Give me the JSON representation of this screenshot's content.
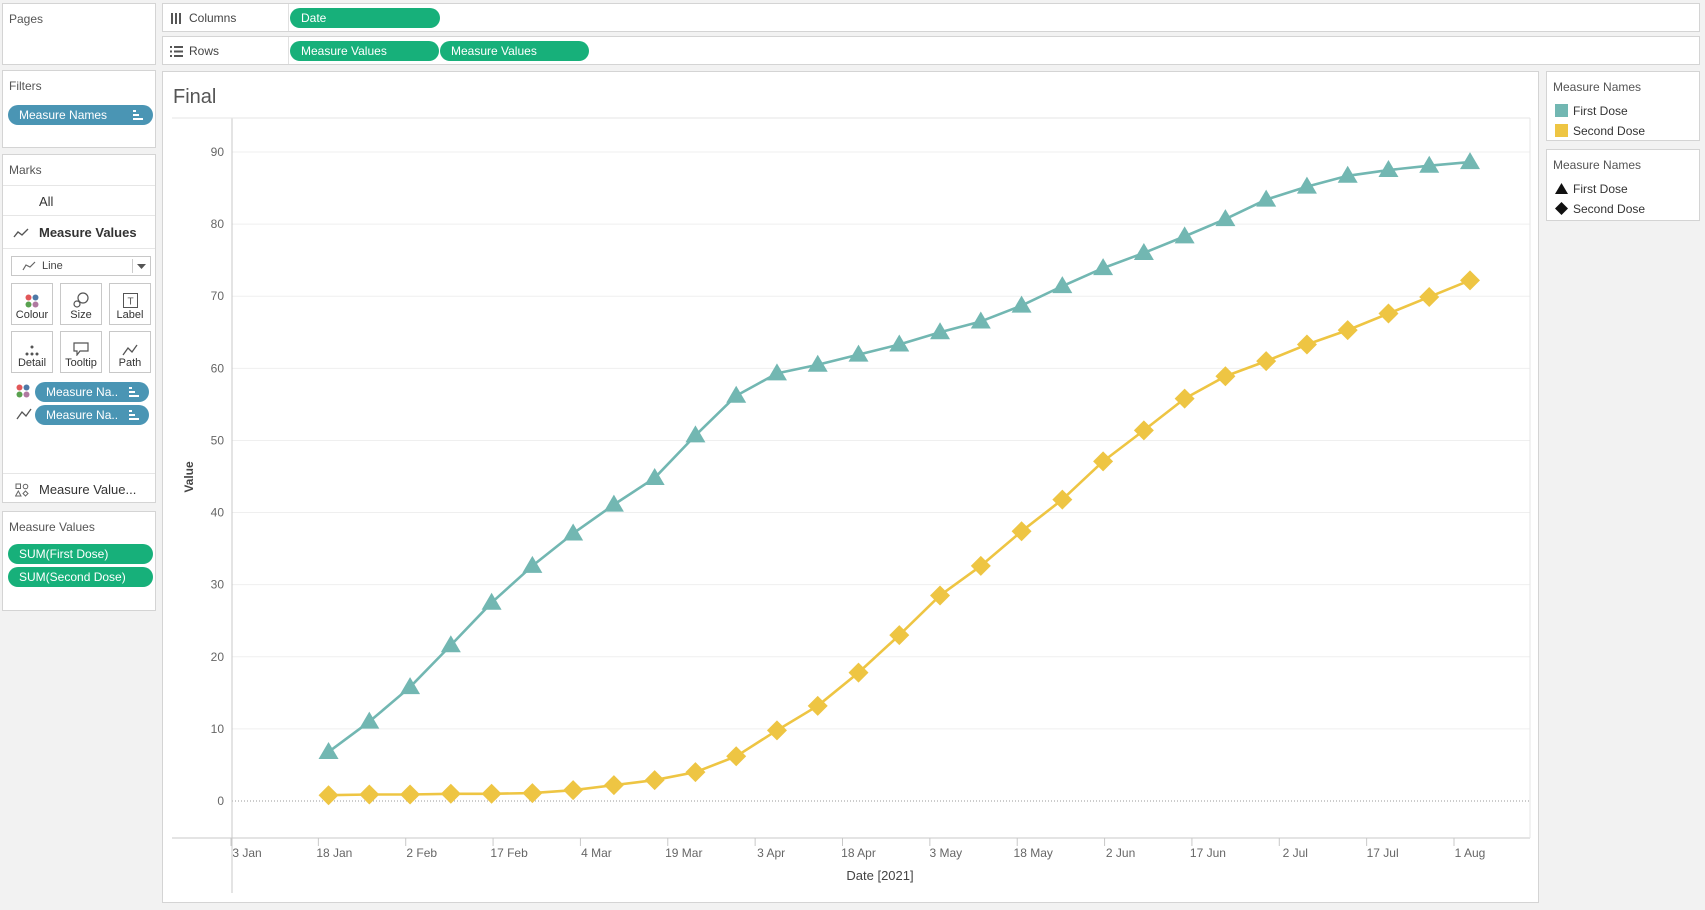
{
  "pages_panel": {
    "title": "Pages"
  },
  "columns_shelf": {
    "label": "Columns",
    "pills": [
      "Date"
    ]
  },
  "rows_shelf": {
    "label": "Rows",
    "pills": [
      "Measure Values",
      "Measure Values"
    ]
  },
  "filters_panel": {
    "title": "Filters",
    "pills": [
      "Measure Names"
    ]
  },
  "marks_panel": {
    "title": "Marks",
    "all_label": "All",
    "active_label": "Measure Values",
    "mark_type": "Line",
    "buttons": [
      "Colour",
      "Size",
      "Label",
      "Detail",
      "Tooltip",
      "Path"
    ],
    "pills": [
      "Measure Na..",
      "Measure Na.."
    ],
    "footer_label": "Measure Value..."
  },
  "measure_values_panel": {
    "title": "Measure Values",
    "pills": [
      "SUM(First Dose)",
      "SUM(Second Dose)"
    ]
  },
  "legend_color": {
    "title": "Measure Names",
    "items": [
      {
        "label": "First Dose",
        "color": "#72b7b2"
      },
      {
        "label": "Second Dose",
        "color": "#eec543"
      }
    ]
  },
  "legend_shape": {
    "title": "Measure Names",
    "items": [
      {
        "label": "First Dose",
        "shape": "triangle"
      },
      {
        "label": "Second Dose",
        "shape": "diamond"
      }
    ]
  },
  "sheet": {
    "title": "Final"
  },
  "chart_data": {
    "type": "line",
    "title": "Final",
    "xlabel": "Date [2021]",
    "ylabel": "Value",
    "ylim": [
      -5,
      95
    ],
    "yticks": [
      0,
      10,
      20,
      30,
      40,
      50,
      60,
      70,
      80,
      90
    ],
    "xticks": [
      {
        "label": "3 Jan",
        "date": "2021-01-03"
      },
      {
        "label": "18 Jan",
        "date": "2021-01-18"
      },
      {
        "label": "2 Feb",
        "date": "2021-02-02"
      },
      {
        "label": "17 Feb",
        "date": "2021-02-17"
      },
      {
        "label": "4 Mar",
        "date": "2021-03-04"
      },
      {
        "label": "19 Mar",
        "date": "2021-03-19"
      },
      {
        "label": "3 Apr",
        "date": "2021-04-03"
      },
      {
        "label": "18 Apr",
        "date": "2021-04-18"
      },
      {
        "label": "3 May",
        "date": "2021-05-03"
      },
      {
        "label": "18 May",
        "date": "2021-05-18"
      },
      {
        "label": "2 Jun",
        "date": "2021-06-02"
      },
      {
        "label": "17 Jun",
        "date": "2021-06-17"
      },
      {
        "label": "2 Jul",
        "date": "2021-07-02"
      },
      {
        "label": "17 Jul",
        "date": "2021-07-17"
      },
      {
        "label": "1 Aug",
        "date": "2021-08-01"
      }
    ],
    "x": [
      "2021-01-17",
      "2021-01-24",
      "2021-01-31",
      "2021-02-07",
      "2021-02-14",
      "2021-02-21",
      "2021-02-28",
      "2021-03-07",
      "2021-03-14",
      "2021-03-21",
      "2021-03-28",
      "2021-04-04",
      "2021-04-11",
      "2021-04-18",
      "2021-04-25",
      "2021-05-02",
      "2021-05-09",
      "2021-05-16",
      "2021-05-23",
      "2021-05-30",
      "2021-06-06",
      "2021-06-13",
      "2021-06-20",
      "2021-06-27",
      "2021-07-04",
      "2021-07-11",
      "2021-07-18",
      "2021-07-25",
      "2021-08-01"
    ],
    "series": [
      {
        "name": "First Dose",
        "color": "#72b7b2",
        "marker": "triangle",
        "values": [
          6.8,
          11.0,
          15.8,
          21.6,
          27.5,
          32.6,
          37.1,
          41.1,
          44.8,
          50.7,
          56.2,
          59.3,
          60.5,
          61.9,
          63.3,
          65.0,
          66.5,
          68.7,
          71.4,
          73.9,
          76.0,
          78.3,
          80.7,
          83.4,
          85.2,
          86.7,
          87.5,
          88.1,
          88.6
        ]
      },
      {
        "name": "Second Dose",
        "color": "#eec543",
        "marker": "diamond",
        "values": [
          0.8,
          0.9,
          0.9,
          1.0,
          1.0,
          1.1,
          1.5,
          2.2,
          2.9,
          4.0,
          6.2,
          9.8,
          13.2,
          17.8,
          23.0,
          28.5,
          32.6,
          37.4,
          41.8,
          47.1,
          51.4,
          55.8,
          58.9,
          61.0,
          63.3,
          65.3,
          67.6,
          69.9,
          72.2
        ]
      }
    ]
  }
}
